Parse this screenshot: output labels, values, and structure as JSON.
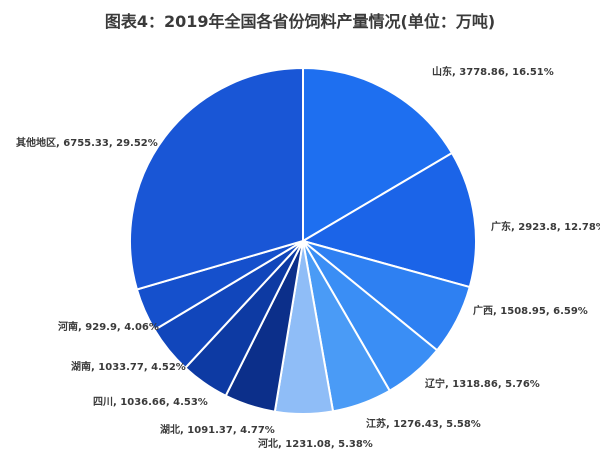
{
  "chart_data": {
    "type": "pie",
    "title": "图表4：2019年全国各省份饲料产量情况(单位：万吨)",
    "slices": [
      {
        "name": "山东",
        "value": 3778.86,
        "percent": "16.51%",
        "color": "#1e6ff0"
      },
      {
        "name": "广东",
        "value": 2923.8,
        "percent": "12.78%",
        "color": "#1b64e8"
      },
      {
        "name": "广西",
        "value": 1508.95,
        "percent": "6.59%",
        "color": "#2e80f2"
      },
      {
        "name": "辽宁",
        "value": 1318.86,
        "percent": "5.76%",
        "color": "#3a8ef5"
      },
      {
        "name": "江苏",
        "value": 1276.43,
        "percent": "5.58%",
        "color": "#4a9bf6"
      },
      {
        "name": "河北",
        "value": 1231.08,
        "percent": "5.38%",
        "color": "#8fbdf7"
      },
      {
        "name": "湖北",
        "value": 1091.37,
        "percent": "4.77%",
        "color": "#0c2f8a"
      },
      {
        "name": "四川",
        "value": 1036.66,
        "percent": "4.53%",
        "color": "#0d3aa3"
      },
      {
        "name": "湖南",
        "value": 1033.77,
        "percent": "4.52%",
        "color": "#1146bb"
      },
      {
        "name": "河南",
        "value": 929.9,
        "percent": "4.06%",
        "color": "#1550cc"
      },
      {
        "name": "其他地区",
        "value": 6755.33,
        "percent": "29.52%",
        "color": "#1956d6"
      }
    ],
    "labels": [
      "山东, 3778.86, 16.51%",
      "广东, 2923.8, 12.78%",
      "广西, 1508.95, 6.59%",
      "辽宁, 1318.86, 5.76%",
      "江苏, 1276.43, 5.58%",
      "河北, 1231.08, 5.38%",
      "湖北, 1091.37, 4.77%",
      "四川, 1036.66, 4.53%",
      "湖南, 1033.77, 4.52%",
      "河南, 929.9, 4.06%",
      "其他地区, 6755.33, 29.52%"
    ],
    "start": "12 o'clock",
    "direction": "clockwise"
  }
}
